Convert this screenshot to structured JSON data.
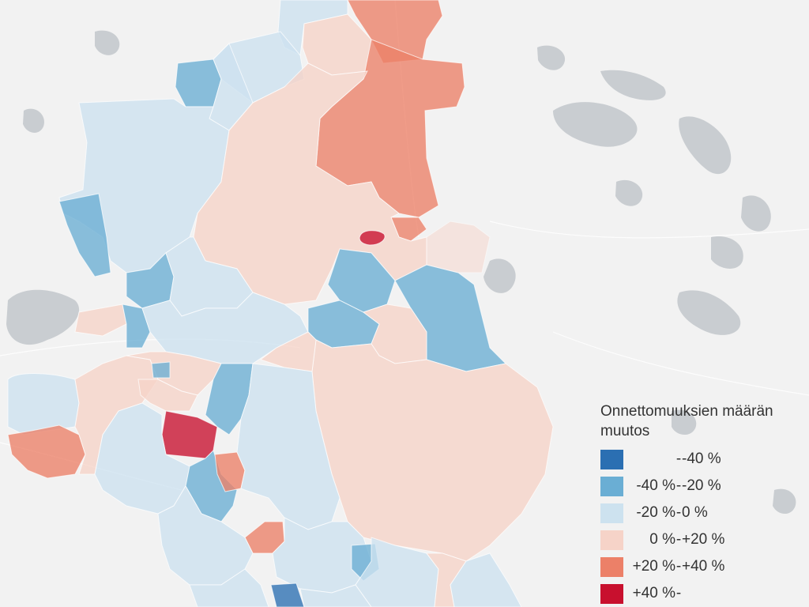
{
  "legend": {
    "title": "Onnettomuuksien määrän muutos",
    "items": [
      {
        "lo": "",
        "hi": "-40 %",
        "color": "#2b6fb2",
        "key": "lt-40"
      },
      {
        "lo": "-40 %",
        "hi": "-20 %",
        "color": "#6aaed4",
        "key": "m40-m20"
      },
      {
        "lo": "-20 %",
        "hi": "0 %",
        "color": "#cde2ef",
        "key": "m20-0"
      },
      {
        "lo": "0 %",
        "hi": "+20 %",
        "color": "#f6d3c8",
        "key": "0-p20"
      },
      {
        "lo": "+20 %",
        "hi": "+40 %",
        "color": "#ec8068",
        "key": "p20-p40"
      },
      {
        "lo": "+40 %",
        "hi": "",
        "color": "#c8102e",
        "key": "gt40"
      }
    ]
  },
  "colors": {
    "background": "#f2f2f2",
    "water": "#c9cdd1"
  }
}
